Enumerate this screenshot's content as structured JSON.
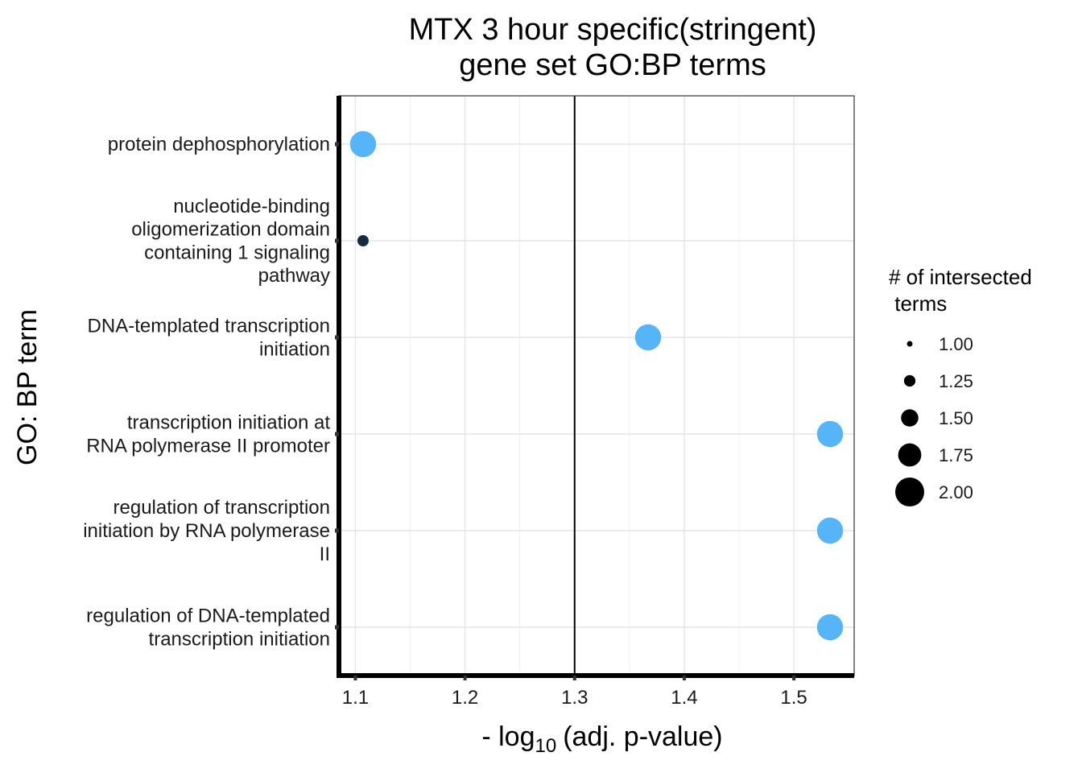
{
  "chart_data": {
    "type": "scatter",
    "title_lines": [
      "MTX 3 hour specific(stringent)",
      "gene set GO:BP terms"
    ],
    "xlabel": {
      "prefix": "- log",
      "subscript": "10",
      "body": "(adj. p-value)"
    },
    "ylabel": "GO: BP term",
    "xlim": [
      1.085,
      1.555
    ],
    "xticks": [
      1.1,
      1.2,
      1.3,
      1.4,
      1.5
    ],
    "xtick_labels": [
      "1.1",
      "1.2",
      "1.3",
      "1.4",
      "1.5"
    ],
    "reference_line_x": 1.3,
    "grid": true,
    "points": [
      {
        "term_lines": [
          "protein dephosphorylation"
        ],
        "x": 1.107,
        "size": 2,
        "color": "#56B4F9"
      },
      {
        "term_lines": [
          "nucleotide-binding",
          "oligomerization domain",
          "containing 1 signaling",
          "pathway"
        ],
        "x": 1.107,
        "size": 1,
        "color": "#132B43"
      },
      {
        "term_lines": [
          "DNA-templated transcription",
          "initiation"
        ],
        "x": 1.367,
        "size": 2,
        "color": "#56B4F9"
      },
      {
        "term_lines": [
          "transcription initiation at",
          "RNA polymerase II promoter"
        ],
        "x": 1.533,
        "size": 2,
        "color": "#56B4F9"
      },
      {
        "term_lines": [
          "regulation of transcription",
          "initiation by RNA polymerase",
          "II"
        ],
        "x": 1.533,
        "size": 2,
        "color": "#56B4F9"
      },
      {
        "term_lines": [
          "regulation of DNA-templated",
          "transcription initiation"
        ],
        "x": 1.533,
        "size": 2,
        "color": "#56B4F9"
      }
    ],
    "legend": {
      "title_lines": [
        "# of intersected",
        " terms"
      ],
      "placement": "right",
      "entries": [
        {
          "label": "1.00",
          "size": 1.0
        },
        {
          "label": "1.25",
          "size": 1.25
        },
        {
          "label": "1.50",
          "size": 1.5
        },
        {
          "label": "1.75",
          "size": 1.75
        },
        {
          "label": "2.00",
          "size": 2.0
        }
      ]
    }
  }
}
